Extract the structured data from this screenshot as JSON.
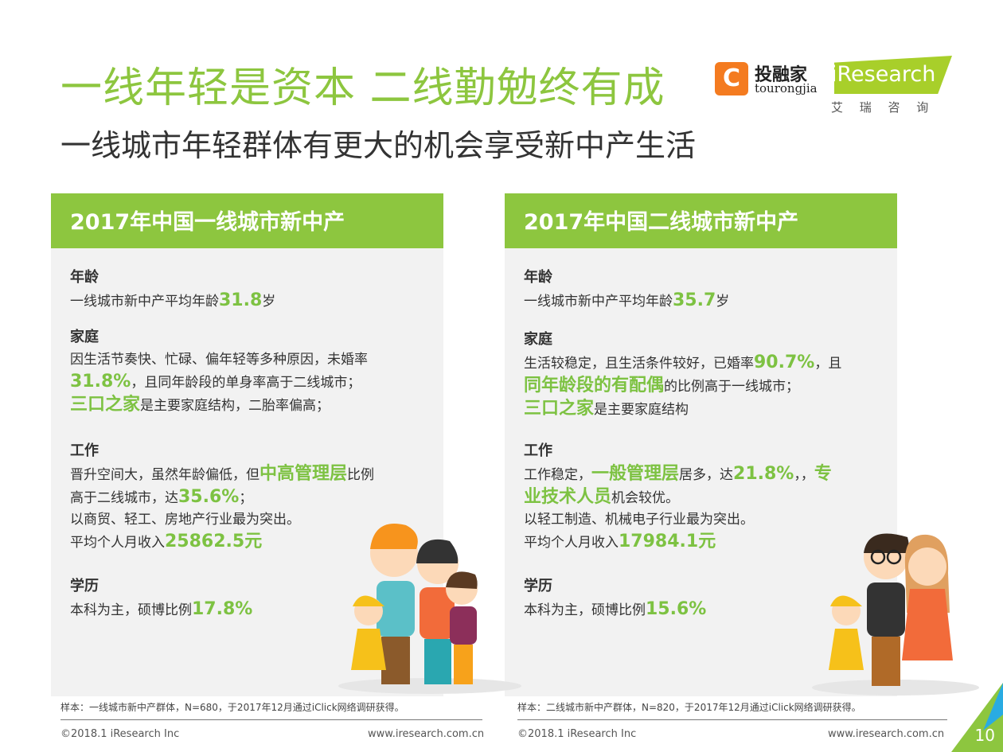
{
  "header": {
    "title": "一线年轻是资本 二线勤勉终有成",
    "subtitle": "一线城市年轻群体有更大的机会享受新中产生活"
  },
  "logos": {
    "tourongjia_cn": "投融家",
    "tourongjia_en": "tourongjia",
    "iresearch": "iResearch",
    "iresearch_cn": "艾 瑞 咨 询"
  },
  "colors": {
    "accent": "#8dc63f",
    "highlight": "#7dc242",
    "orange": "#f47b20"
  },
  "cards": [
    {
      "title": "2017年中国一线城市新中产",
      "sections": [
        {
          "heading": "年龄",
          "lines": [
            [
              {
                "t": "一线城市新中产平均年龄"
              },
              {
                "t": "31.8",
                "hl": true
              },
              {
                "t": "岁"
              }
            ]
          ]
        },
        {
          "heading": "家庭",
          "lines": [
            [
              {
                "t": "因生活节奏快、忙碌、偏年轻等多种原因，未婚率"
              }
            ],
            [
              {
                "t": "31.8%",
                "hl": true
              },
              {
                "t": "，且同年龄段的单身率高于二线城市；"
              }
            ],
            [
              {
                "t": "三口之家",
                "hl": true
              },
              {
                "t": "是主要家庭结构，二胎率偏高；"
              }
            ]
          ]
        },
        {
          "heading": "工作",
          "lines": [
            [
              {
                "t": "晋升空间大，虽然年龄偏低，但"
              },
              {
                "t": "中高管理层",
                "hl": true
              },
              {
                "t": "比例"
              }
            ],
            [
              {
                "t": "高于二线城市，达"
              },
              {
                "t": "35.6%",
                "hl": true
              },
              {
                "t": "；"
              }
            ],
            [
              {
                "t": "以商贸、轻工、房地产行业最为突出。"
              }
            ],
            [
              {
                "t": "平均个人月收入"
              },
              {
                "t": "25862.5元",
                "hl": true
              }
            ]
          ]
        },
        {
          "heading": "学历",
          "lines": [
            [
              {
                "t": "本科为主，硕博比例"
              },
              {
                "t": "17.8%",
                "hl": true
              }
            ]
          ]
        }
      ],
      "note": "样本：一线城市新中产群体，N=680，于2017年12月通过iClick网络调研获得。"
    },
    {
      "title": "2017年中国二线城市新中产",
      "sections": [
        {
          "heading": "年龄",
          "lines": [
            [
              {
                "t": "一线城市新中产平均年龄"
              },
              {
                "t": "35.7",
                "hl": true
              },
              {
                "t": "岁"
              }
            ]
          ]
        },
        {
          "heading": "家庭",
          "lines": [
            [
              {
                "t": "生活较稳定，且生活条件较好，已婚率"
              },
              {
                "t": "90.7%",
                "hl": true
              },
              {
                "t": "，且"
              }
            ],
            [
              {
                "t": "同年龄段的有配偶",
                "hl": true
              },
              {
                "t": "的比例高于一线城市；"
              }
            ],
            [
              {
                "t": "三口之家",
                "hl": true
              },
              {
                "t": "是主要家庭结构"
              }
            ]
          ]
        },
        {
          "heading": "工作",
          "lines": [
            [
              {
                "t": "工作稳定，"
              },
              {
                "t": "一般管理层",
                "hl": true
              },
              {
                "t": "居多，达"
              },
              {
                "t": "21.8%",
                "hl": true
              },
              {
                "t": "，，"
              },
              {
                "t": "专",
                "hl": true
              }
            ],
            [
              {
                "t": "业技术人员",
                "hl": true
              },
              {
                "t": "机会较优。"
              }
            ],
            [
              {
                "t": "以轻工制造、机械电子行业最为突出。"
              }
            ],
            [
              {
                "t": "平均个人月收入"
              },
              {
                "t": "17984.1元",
                "hl": true
              }
            ]
          ]
        },
        {
          "heading": "学历",
          "lines": [
            [
              {
                "t": "本科为主，硕博比例"
              },
              {
                "t": "15.6%",
                "hl": true
              }
            ]
          ]
        }
      ],
      "note": "样本：二线城市新中产群体，N=820，于2017年12月通过iClick网络调研获得。"
    }
  ],
  "footer": {
    "copyright": "©2018.1 iResearch Inc",
    "url": "www.iresearch.com.cn",
    "page": "10"
  }
}
